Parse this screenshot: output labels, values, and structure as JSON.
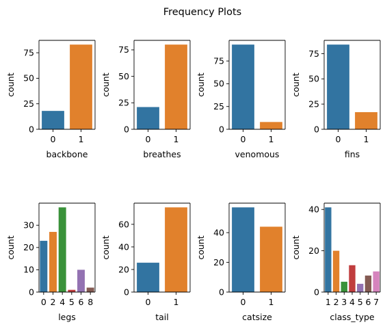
{
  "figure_title": "Frequency Plots",
  "colors": {
    "tab_blue": "#3274a1",
    "tab_orange": "#e1812c",
    "tab_green": "#3a923a",
    "tab_red": "#c03d3e",
    "tab_purple": "#9372b2",
    "tab_brown": "#845b53",
    "tab_pink": "#d684bd"
  },
  "chart_data": [
    {
      "type": "bar",
      "xlabel": "backbone",
      "ylabel": "count",
      "categories": [
        "0",
        "1"
      ],
      "values": [
        18,
        83
      ],
      "ylim": [
        0,
        87.15
      ],
      "yticks": [
        0,
        25,
        50,
        75
      ],
      "colors": [
        "#3274a1",
        "#e1812c"
      ],
      "grid": false
    },
    {
      "type": "bar",
      "xlabel": "breathes",
      "ylabel": "count",
      "categories": [
        "0",
        "1"
      ],
      "values": [
        21,
        80
      ],
      "ylim": [
        0,
        84
      ],
      "yticks": [
        0,
        25,
        50,
        75
      ],
      "colors": [
        "#3274a1",
        "#e1812c"
      ],
      "grid": false
    },
    {
      "type": "bar",
      "xlabel": "venomous",
      "ylabel": "count",
      "categories": [
        "0",
        "1"
      ],
      "values": [
        93,
        8
      ],
      "ylim": [
        0,
        97.65
      ],
      "yticks": [
        0,
        25,
        50,
        75
      ],
      "colors": [
        "#3274a1",
        "#e1812c"
      ],
      "grid": false
    },
    {
      "type": "bar",
      "xlabel": "fins",
      "ylabel": "count",
      "categories": [
        "0",
        "1"
      ],
      "values": [
        84,
        17
      ],
      "ylim": [
        0,
        88.2
      ],
      "yticks": [
        0,
        25,
        50,
        75
      ],
      "colors": [
        "#3274a1",
        "#e1812c"
      ],
      "grid": false
    },
    {
      "type": "bar",
      "xlabel": "legs",
      "ylabel": "count",
      "categories": [
        "0",
        "2",
        "4",
        "5",
        "6",
        "8"
      ],
      "values": [
        23,
        27,
        38,
        1,
        10,
        2
      ],
      "ylim": [
        0,
        39.9
      ],
      "yticks": [
        0,
        10,
        20,
        30
      ],
      "colors": [
        "#3274a1",
        "#e1812c",
        "#3a923a",
        "#c03d3e",
        "#9372b2",
        "#845b53"
      ],
      "grid": false
    },
    {
      "type": "bar",
      "xlabel": "tail",
      "ylabel": "count",
      "categories": [
        "0",
        "1"
      ],
      "values": [
        26,
        75
      ],
      "ylim": [
        0,
        78.75
      ],
      "yticks": [
        0,
        20,
        40,
        60
      ],
      "colors": [
        "#3274a1",
        "#e1812c"
      ],
      "grid": false
    },
    {
      "type": "bar",
      "xlabel": "catsize",
      "ylabel": "count",
      "categories": [
        "0",
        "1"
      ],
      "values": [
        57,
        44
      ],
      "ylim": [
        0,
        59.85
      ],
      "yticks": [
        0,
        20,
        40
      ],
      "colors": [
        "#3274a1",
        "#e1812c"
      ],
      "grid": false
    },
    {
      "type": "bar",
      "xlabel": "class_type",
      "ylabel": "count",
      "categories": [
        "1",
        "2",
        "3",
        "4",
        "5",
        "6",
        "7"
      ],
      "values": [
        41,
        20,
        5,
        13,
        4,
        8,
        10
      ],
      "ylim": [
        0,
        43.05
      ],
      "yticks": [
        0,
        20,
        40
      ],
      "colors": [
        "#3274a1",
        "#e1812c",
        "#3a923a",
        "#c03d3e",
        "#9372b2",
        "#845b53",
        "#d684bd"
      ],
      "grid": false
    }
  ]
}
